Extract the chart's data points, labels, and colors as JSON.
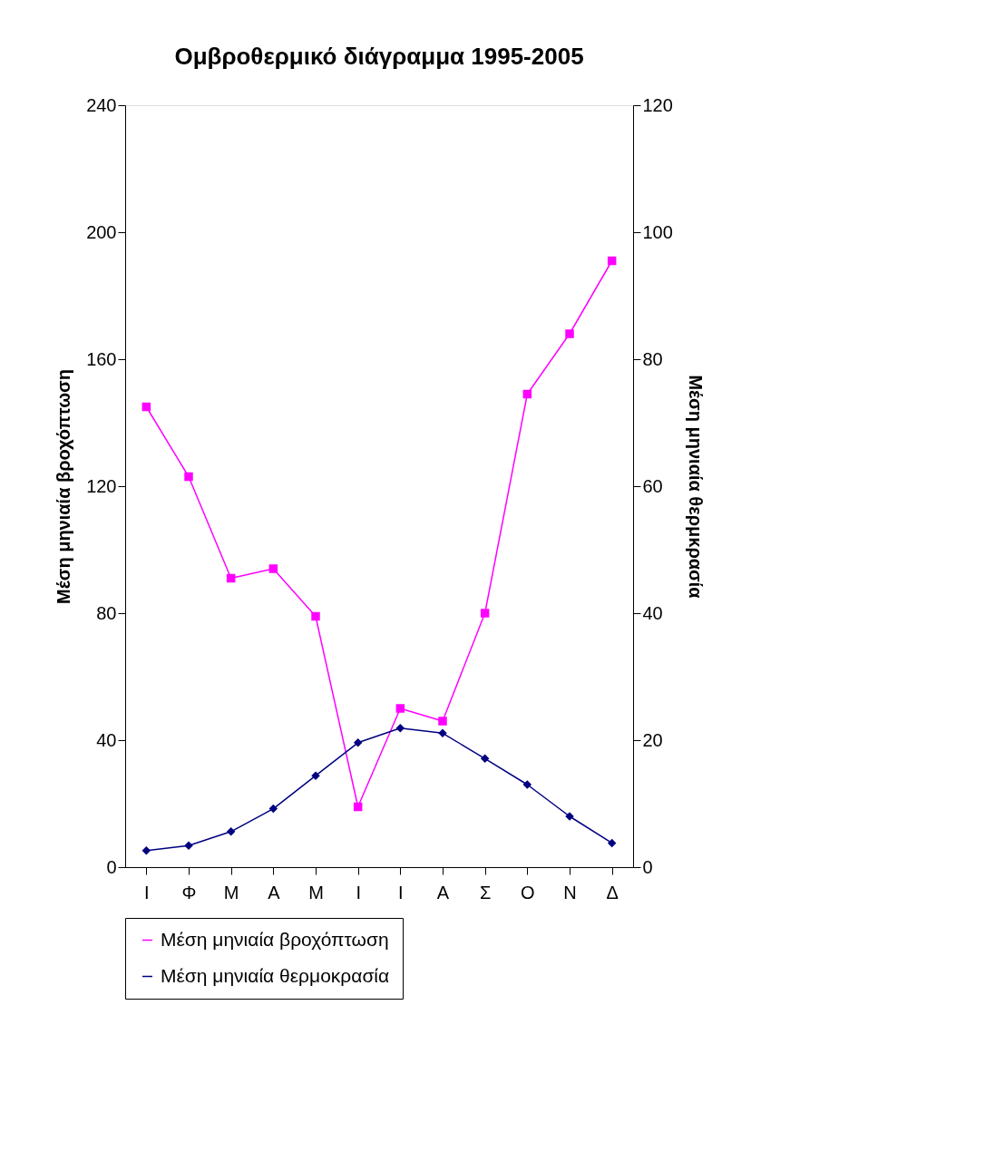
{
  "chart_data": {
    "type": "line",
    "title": "Ομβροθερμικό διάγραμμα 1995-2005",
    "categories": [
      "Ι",
      "Φ",
      "Μ",
      "Α",
      "Μ",
      "Ι",
      "Ι",
      "Α",
      "Σ",
      "Ο",
      "Ν",
      "Δ"
    ],
    "ylabel": "Μέση μηνιαία βροχόπτωση",
    "y2label": "Μέση μηνιαία θερμκρασία",
    "series": [
      {
        "name": "Μέση μηνιαία βροχόπτωση",
        "color": "#ff00ff",
        "marker": "square",
        "values": [
          145,
          123,
          91,
          94,
          79,
          19,
          50,
          46,
          80,
          149,
          168,
          191
        ]
      },
      {
        "name": "Μέση μηνιαία θερμοκρασία",
        "color": "#000080",
        "marker": "diamond",
        "axis": "y2",
        "values": [
          2.6,
          3.4,
          5.6,
          9.2,
          14.4,
          19.6,
          21.9,
          21.1,
          17.1,
          13,
          8,
          3.8
        ]
      }
    ],
    "ylim": [
      0,
      240
    ],
    "yticks": [
      0,
      40,
      80,
      120,
      160,
      200,
      240
    ],
    "y2lim": [
      0,
      120
    ],
    "y2ticks": [
      0,
      20,
      40,
      60,
      80,
      100,
      120
    ],
    "grid": false,
    "legend": "bottom"
  }
}
